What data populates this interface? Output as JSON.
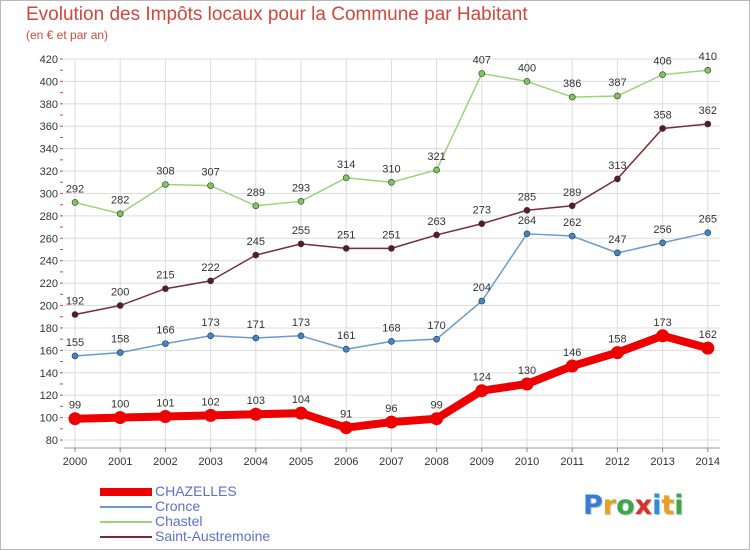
{
  "header": {
    "title": "Evolution des Impôts locaux pour la Commune par Habitant",
    "subtitle": "(en € et par an)"
  },
  "brand": {
    "text": "Proxiti",
    "letter_colors": [
      "#3a7bd5",
      "#e8a020",
      "#3aa84a",
      "#d6332b",
      "#2a8fd8",
      "#e8a020",
      "#3aa84a"
    ]
  },
  "colors": {
    "title": "#d2463c",
    "legend_text": "#5a6fd8",
    "grid": "#dcdcdc",
    "axis_ticks": "#d2463c"
  },
  "chart_data": {
    "type": "line",
    "x": [
      2000,
      2001,
      2002,
      2003,
      2004,
      2005,
      2006,
      2007,
      2008,
      2009,
      2010,
      2011,
      2012,
      2013,
      2014
    ],
    "ylim": [
      80,
      420
    ],
    "yticks": [
      80,
      100,
      120,
      140,
      160,
      180,
      200,
      220,
      240,
      260,
      280,
      300,
      320,
      340,
      360,
      380,
      400,
      420
    ],
    "grid": true,
    "legend_placement": "bottom-left",
    "series": [
      {
        "name": "CHAZELLES",
        "color": "#ee0000",
        "marker": "#ee0000",
        "thick": true,
        "values": [
          99,
          100,
          101,
          102,
          103,
          104,
          91,
          96,
          99,
          124,
          130,
          146,
          158,
          173,
          162
        ]
      },
      {
        "name": "Cronce",
        "color": "#6a9ad0",
        "marker": "#3f86cc",
        "thick": false,
        "values": [
          155,
          158,
          166,
          173,
          171,
          173,
          161,
          168,
          170,
          204,
          264,
          262,
          247,
          256,
          265
        ]
      },
      {
        "name": "Chastel",
        "color": "#9ad47a",
        "marker": "#7fc75a",
        "thick": false,
        "values": [
          292,
          282,
          308,
          307,
          289,
          293,
          314,
          310,
          321,
          407,
          400,
          386,
          387,
          406,
          410
        ]
      },
      {
        "name": "Saint-Austremoine",
        "color": "#7a2a3a",
        "marker": "#5a1a24",
        "thick": false,
        "values": [
          192,
          200,
          215,
          222,
          245,
          255,
          251,
          251,
          263,
          273,
          285,
          289,
          313,
          358,
          362
        ]
      }
    ]
  }
}
